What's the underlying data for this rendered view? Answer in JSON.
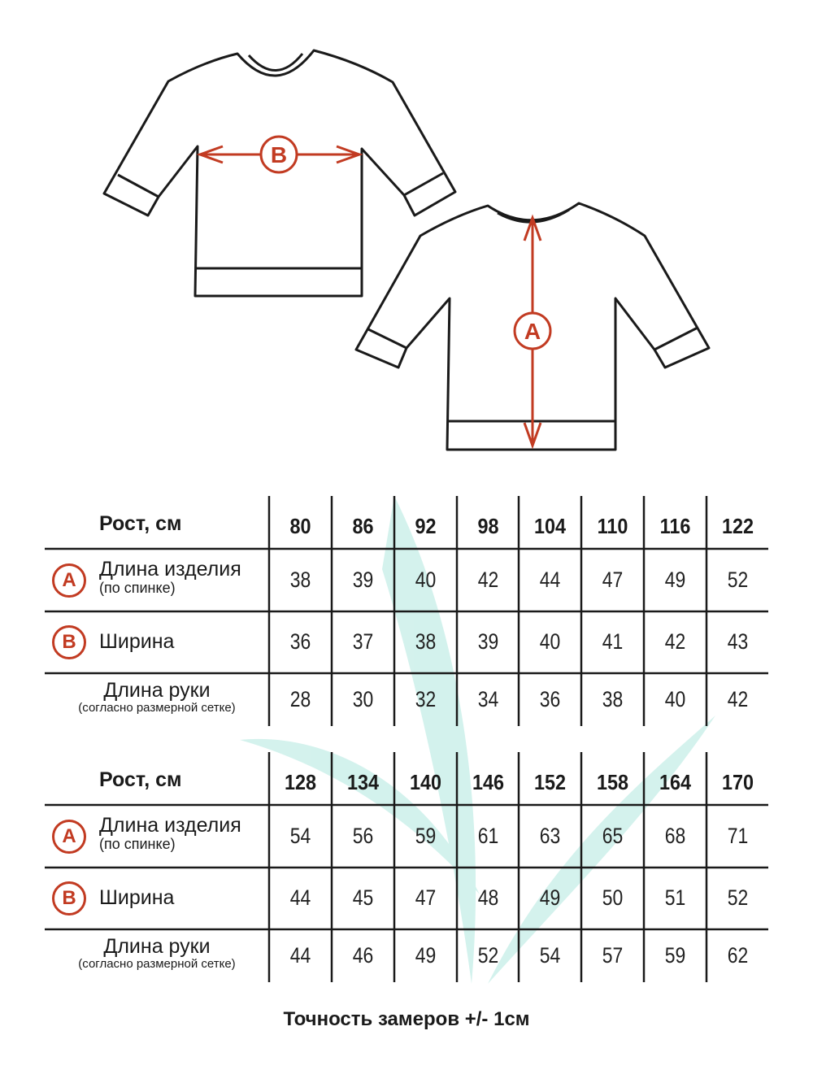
{
  "diagram": {
    "front_marker": "B",
    "back_marker": "A",
    "accent_color": "#c23b22",
    "watermark_color": "#bfe9e2"
  },
  "tables": [
    {
      "header_label": "Рост, см",
      "sizes": [
        "80",
        "86",
        "92",
        "98",
        "104",
        "110",
        "116",
        "122"
      ],
      "rows": [
        {
          "marker": "A",
          "label": "Длина изделия",
          "sublabel": "(по спинке)",
          "values": [
            "38",
            "39",
            "40",
            "42",
            "44",
            "47",
            "49",
            "52"
          ]
        },
        {
          "marker": "B",
          "label": "Ширина",
          "sublabel": "",
          "values": [
            "36",
            "37",
            "38",
            "39",
            "40",
            "41",
            "42",
            "43"
          ]
        },
        {
          "marker": "",
          "label": "Длина руки",
          "sublabel": "(согласно размерной сетке)",
          "values": [
            "28",
            "30",
            "32",
            "34",
            "36",
            "38",
            "40",
            "42"
          ]
        }
      ]
    },
    {
      "header_label": "Рост, см",
      "sizes": [
        "128",
        "134",
        "140",
        "146",
        "152",
        "158",
        "164",
        "170"
      ],
      "rows": [
        {
          "marker": "A",
          "label": "Длина изделия",
          "sublabel": "(по спинке)",
          "values": [
            "54",
            "56",
            "59",
            "61",
            "63",
            "65",
            "68",
            "71"
          ]
        },
        {
          "marker": "B",
          "label": "Ширина",
          "sublabel": "",
          "values": [
            "44",
            "45",
            "47",
            "48",
            "49",
            "50",
            "51",
            "52"
          ]
        },
        {
          "marker": "",
          "label": "Длина руки",
          "sublabel": "(согласно размерной сетке)",
          "values": [
            "44",
            "46",
            "49",
            "52",
            "54",
            "57",
            "59",
            "62"
          ]
        }
      ]
    }
  ],
  "footer": "Точность замеров +/- 1см"
}
